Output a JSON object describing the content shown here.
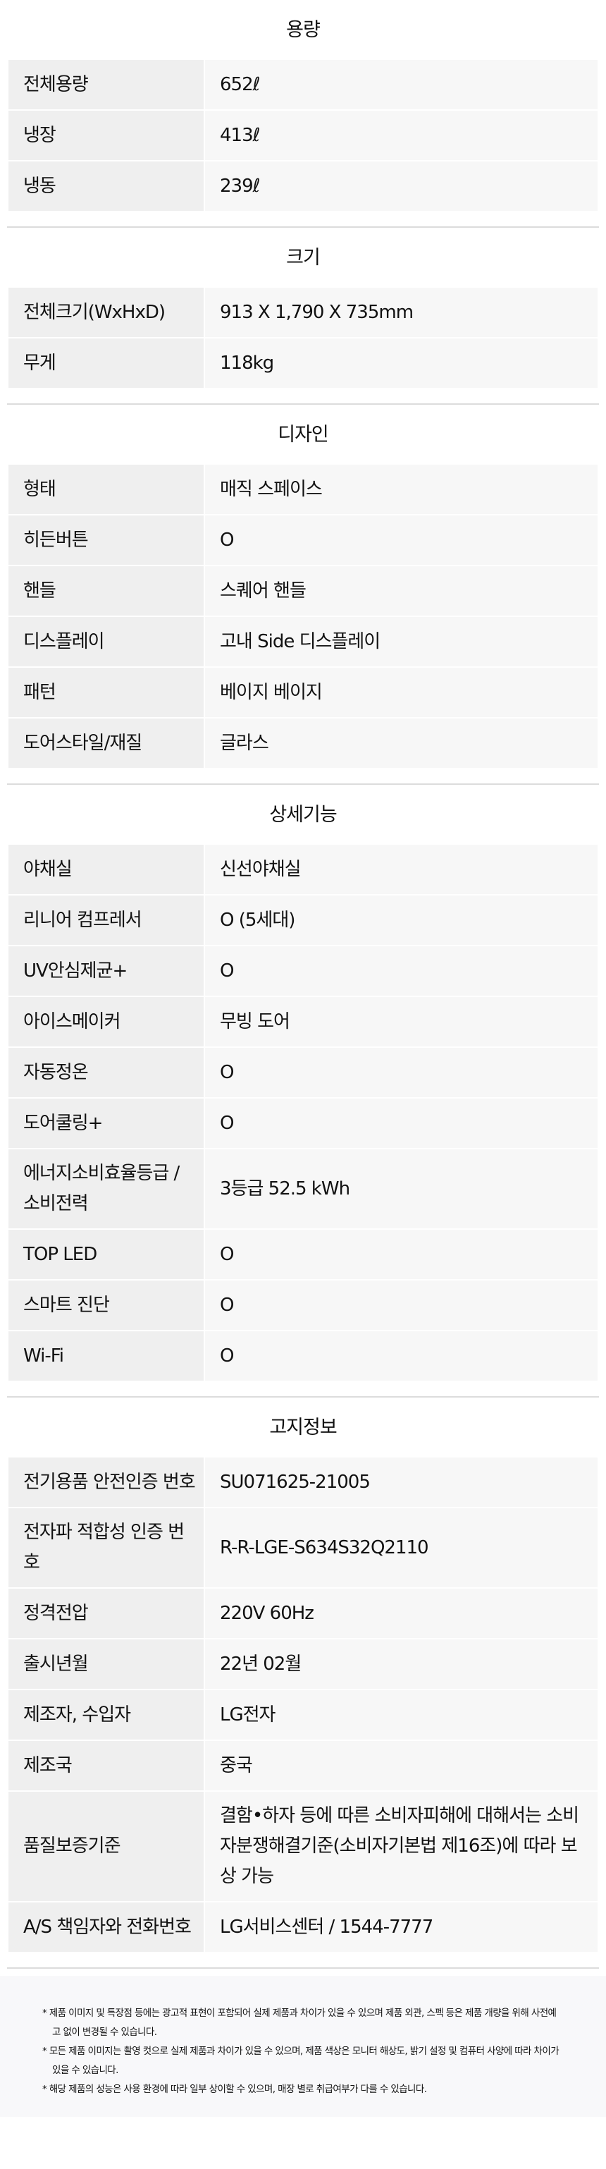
{
  "sections": [
    {
      "title": "용량",
      "rows": [
        {
          "label": "전체용량",
          "value": "652ℓ"
        },
        {
          "label": "냉장",
          "value": "413ℓ"
        },
        {
          "label": "냉동",
          "value": "239ℓ"
        }
      ]
    },
    {
      "title": "크기",
      "rows": [
        {
          "label": "전체크기(WxHxD)",
          "value": "913 X 1,790 X 735mm"
        },
        {
          "label": "무게",
          "value": "118kg"
        }
      ]
    },
    {
      "title": "디자인",
      "rows": [
        {
          "label": "형태",
          "value": "매직 스페이스"
        },
        {
          "label": "히든버튼",
          "value": "O"
        },
        {
          "label": "핸들",
          "value": "스퀘어 핸들"
        },
        {
          "label": "디스플레이",
          "value": "고내 Side 디스플레이"
        },
        {
          "label": "패턴",
          "value": "베이지 베이지"
        },
        {
          "label": "도어스타일/재질",
          "value": "글라스"
        }
      ]
    },
    {
      "title": "상세기능",
      "rows": [
        {
          "label": "야채실",
          "value": "신선야채실"
        },
        {
          "label": "리니어 컴프레서",
          "value": "O (5세대)"
        },
        {
          "label": "UV안심제균+",
          "value": "O"
        },
        {
          "label": "아이스메이커",
          "value": "무빙 도어"
        },
        {
          "label": "자동정온",
          "value": "O"
        },
        {
          "label": "도어쿨링+",
          "value": "O"
        },
        {
          "label": "에너지소비효율등급 / 소비전력",
          "value": "3등급 52.5 kWh"
        },
        {
          "label": "TOP LED",
          "value": "O"
        },
        {
          "label": "스마트 진단",
          "value": "O"
        },
        {
          "label": "Wi-Fi",
          "value": "O"
        }
      ]
    },
    {
      "title": "고지정보",
      "rows": [
        {
          "label": "전기용품 안전인증 번호",
          "value": "SU071625-21005"
        },
        {
          "label": "전자파 적합성 인증 번호",
          "value": "R-R-LGE-S634S32Q2110"
        },
        {
          "label": "정격전압",
          "value": "220V 60Hz"
        },
        {
          "label": "출시년월",
          "value": "22년 02월"
        },
        {
          "label": "제조자, 수입자",
          "value": "LG전자"
        },
        {
          "label": "제조국",
          "value": "중국"
        },
        {
          "label": "품질보증기준",
          "value": "결함•하자 등에 따른 소비자피해에 대해서는 소비자분쟁해결기준(소비자기본법 제16조)에 따라 보상 가능"
        },
        {
          "label": "A/S 책임자와 전화번호",
          "value": "LG서비스센터 / 1544-7777"
        }
      ]
    }
  ],
  "notes": [
    "* 제품 이미지 및 특장점 등에는 광고적 표현이 포함되어 실제 제품과 차이가 있을 수 있으며 제품 외관, 스펙 등은 제품 개량을 위해 사전예고 없이 변경될 수 있습니다.",
    "* 모든 제품 이미지는 촬영 컷으로 실제 제품과 차이가 있을 수 있으며, 제품 색상은 모니터 해상도, 밝기 설정 및 컴퓨터 사양에 따라 차이가 있을 수 있습니다.",
    "* 해당 제품의 성능은 사용 환경에 따라 일부 상이할 수 있으며, 매장 별로 취급여부가 다를 수 있습니다."
  ]
}
